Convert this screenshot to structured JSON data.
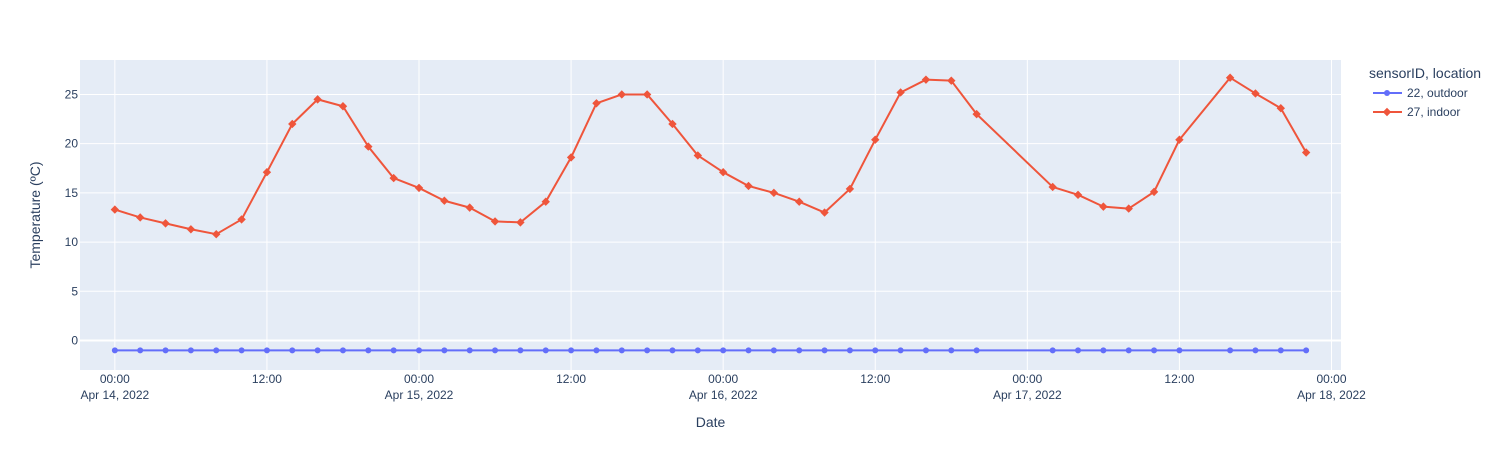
{
  "chart_data": {
    "type": "line",
    "xlabel": "Date",
    "ylabel": "Temperature (ºC)",
    "xlim": [
      "2022-04-13T21:15",
      "2022-04-18T00:45"
    ],
    "ylim": [
      -3,
      28.5
    ],
    "y_ticks": [
      0,
      5,
      10,
      15,
      20,
      25
    ],
    "x_ticks": [
      {
        "t": "2022-04-14T00:00",
        "line1": "00:00",
        "line2": "Apr 14, 2022"
      },
      {
        "t": "2022-04-14T12:00",
        "line1": "12:00",
        "line2": ""
      },
      {
        "t": "2022-04-15T00:00",
        "line1": "00:00",
        "line2": "Apr 15, 2022"
      },
      {
        "t": "2022-04-15T12:00",
        "line1": "12:00",
        "line2": ""
      },
      {
        "t": "2022-04-16T00:00",
        "line1": "00:00",
        "line2": "Apr 16, 2022"
      },
      {
        "t": "2022-04-16T12:00",
        "line1": "12:00",
        "line2": ""
      },
      {
        "t": "2022-04-17T00:00",
        "line1": "00:00",
        "line2": "Apr 17, 2022"
      },
      {
        "t": "2022-04-17T12:00",
        "line1": "12:00",
        "line2": ""
      },
      {
        "t": "2022-04-18T00:00",
        "line1": "00:00",
        "line2": "Apr 18, 2022"
      }
    ],
    "grid": true,
    "legend": {
      "title": "sensorID, location",
      "position": "top-right"
    },
    "series": [
      {
        "name": "22, outdoor",
        "color": "#636efa",
        "marker": "circle",
        "x": [
          "2022-04-14T00:00",
          "2022-04-14T02:00",
          "2022-04-14T04:00",
          "2022-04-14T06:00",
          "2022-04-14T08:00",
          "2022-04-14T10:00",
          "2022-04-14T12:00",
          "2022-04-14T14:00",
          "2022-04-14T16:00",
          "2022-04-14T18:00",
          "2022-04-14T20:00",
          "2022-04-14T22:00",
          "2022-04-15T00:00",
          "2022-04-15T02:00",
          "2022-04-15T04:00",
          "2022-04-15T06:00",
          "2022-04-15T08:00",
          "2022-04-15T10:00",
          "2022-04-15T12:00",
          "2022-04-15T14:00",
          "2022-04-15T16:00",
          "2022-04-15T18:00",
          "2022-04-15T20:00",
          "2022-04-15T22:00",
          "2022-04-16T00:00",
          "2022-04-16T02:00",
          "2022-04-16T04:00",
          "2022-04-16T06:00",
          "2022-04-16T08:00",
          "2022-04-16T10:00",
          "2022-04-16T12:00",
          "2022-04-16T14:00",
          "2022-04-16T16:00",
          "2022-04-16T18:00",
          "2022-04-16T20:00",
          "2022-04-17T02:00",
          "2022-04-17T04:00",
          "2022-04-17T06:00",
          "2022-04-17T08:00",
          "2022-04-17T10:00",
          "2022-04-17T12:00",
          "2022-04-17T16:00",
          "2022-04-17T18:00",
          "2022-04-17T20:00",
          "2022-04-17T22:00"
        ],
        "y": [
          -1,
          -1,
          -1,
          -1,
          -1,
          -1,
          -1,
          -1,
          -1,
          -1,
          -1,
          -1,
          -1,
          -1,
          -1,
          -1,
          -1,
          -1,
          -1,
          -1,
          -1,
          -1,
          -1,
          -1,
          -1,
          -1,
          -1,
          -1,
          -1,
          -1,
          -1,
          -1,
          -1,
          -1,
          -1,
          -1,
          -1,
          -1,
          -1,
          -1,
          -1,
          -1,
          -1,
          -1,
          -1
        ]
      },
      {
        "name": "27, indoor",
        "color": "#ef553b",
        "marker": "diamond",
        "x": [
          "2022-04-14T00:00",
          "2022-04-14T02:00",
          "2022-04-14T04:00",
          "2022-04-14T06:00",
          "2022-04-14T08:00",
          "2022-04-14T10:00",
          "2022-04-14T12:00",
          "2022-04-14T14:00",
          "2022-04-14T16:00",
          "2022-04-14T18:00",
          "2022-04-14T20:00",
          "2022-04-14T22:00",
          "2022-04-15T00:00",
          "2022-04-15T02:00",
          "2022-04-15T04:00",
          "2022-04-15T06:00",
          "2022-04-15T08:00",
          "2022-04-15T10:00",
          "2022-04-15T12:00",
          "2022-04-15T14:00",
          "2022-04-15T16:00",
          "2022-04-15T18:00",
          "2022-04-15T20:00",
          "2022-04-15T22:00",
          "2022-04-16T00:00",
          "2022-04-16T02:00",
          "2022-04-16T04:00",
          "2022-04-16T06:00",
          "2022-04-16T08:00",
          "2022-04-16T10:00",
          "2022-04-16T12:00",
          "2022-04-16T14:00",
          "2022-04-16T16:00",
          "2022-04-16T18:00",
          "2022-04-16T20:00",
          "2022-04-17T02:00",
          "2022-04-17T04:00",
          "2022-04-17T06:00",
          "2022-04-17T08:00",
          "2022-04-17T10:00",
          "2022-04-17T12:00",
          "2022-04-17T16:00",
          "2022-04-17T18:00",
          "2022-04-17T20:00",
          "2022-04-17T22:00"
        ],
        "y": [
          13.3,
          12.5,
          11.9,
          11.3,
          10.8,
          12.3,
          17.1,
          22.0,
          24.5,
          23.8,
          19.7,
          16.5,
          15.5,
          14.2,
          13.5,
          12.1,
          12.0,
          14.1,
          18.6,
          24.1,
          25.0,
          25.0,
          22.0,
          18.8,
          17.1,
          15.7,
          15.0,
          14.1,
          13.0,
          15.4,
          20.4,
          25.2,
          26.5,
          26.4,
          23.0,
          15.6,
          14.8,
          13.6,
          13.4,
          15.1,
          20.4,
          26.7,
          25.1,
          23.6,
          19.1
        ]
      }
    ]
  }
}
